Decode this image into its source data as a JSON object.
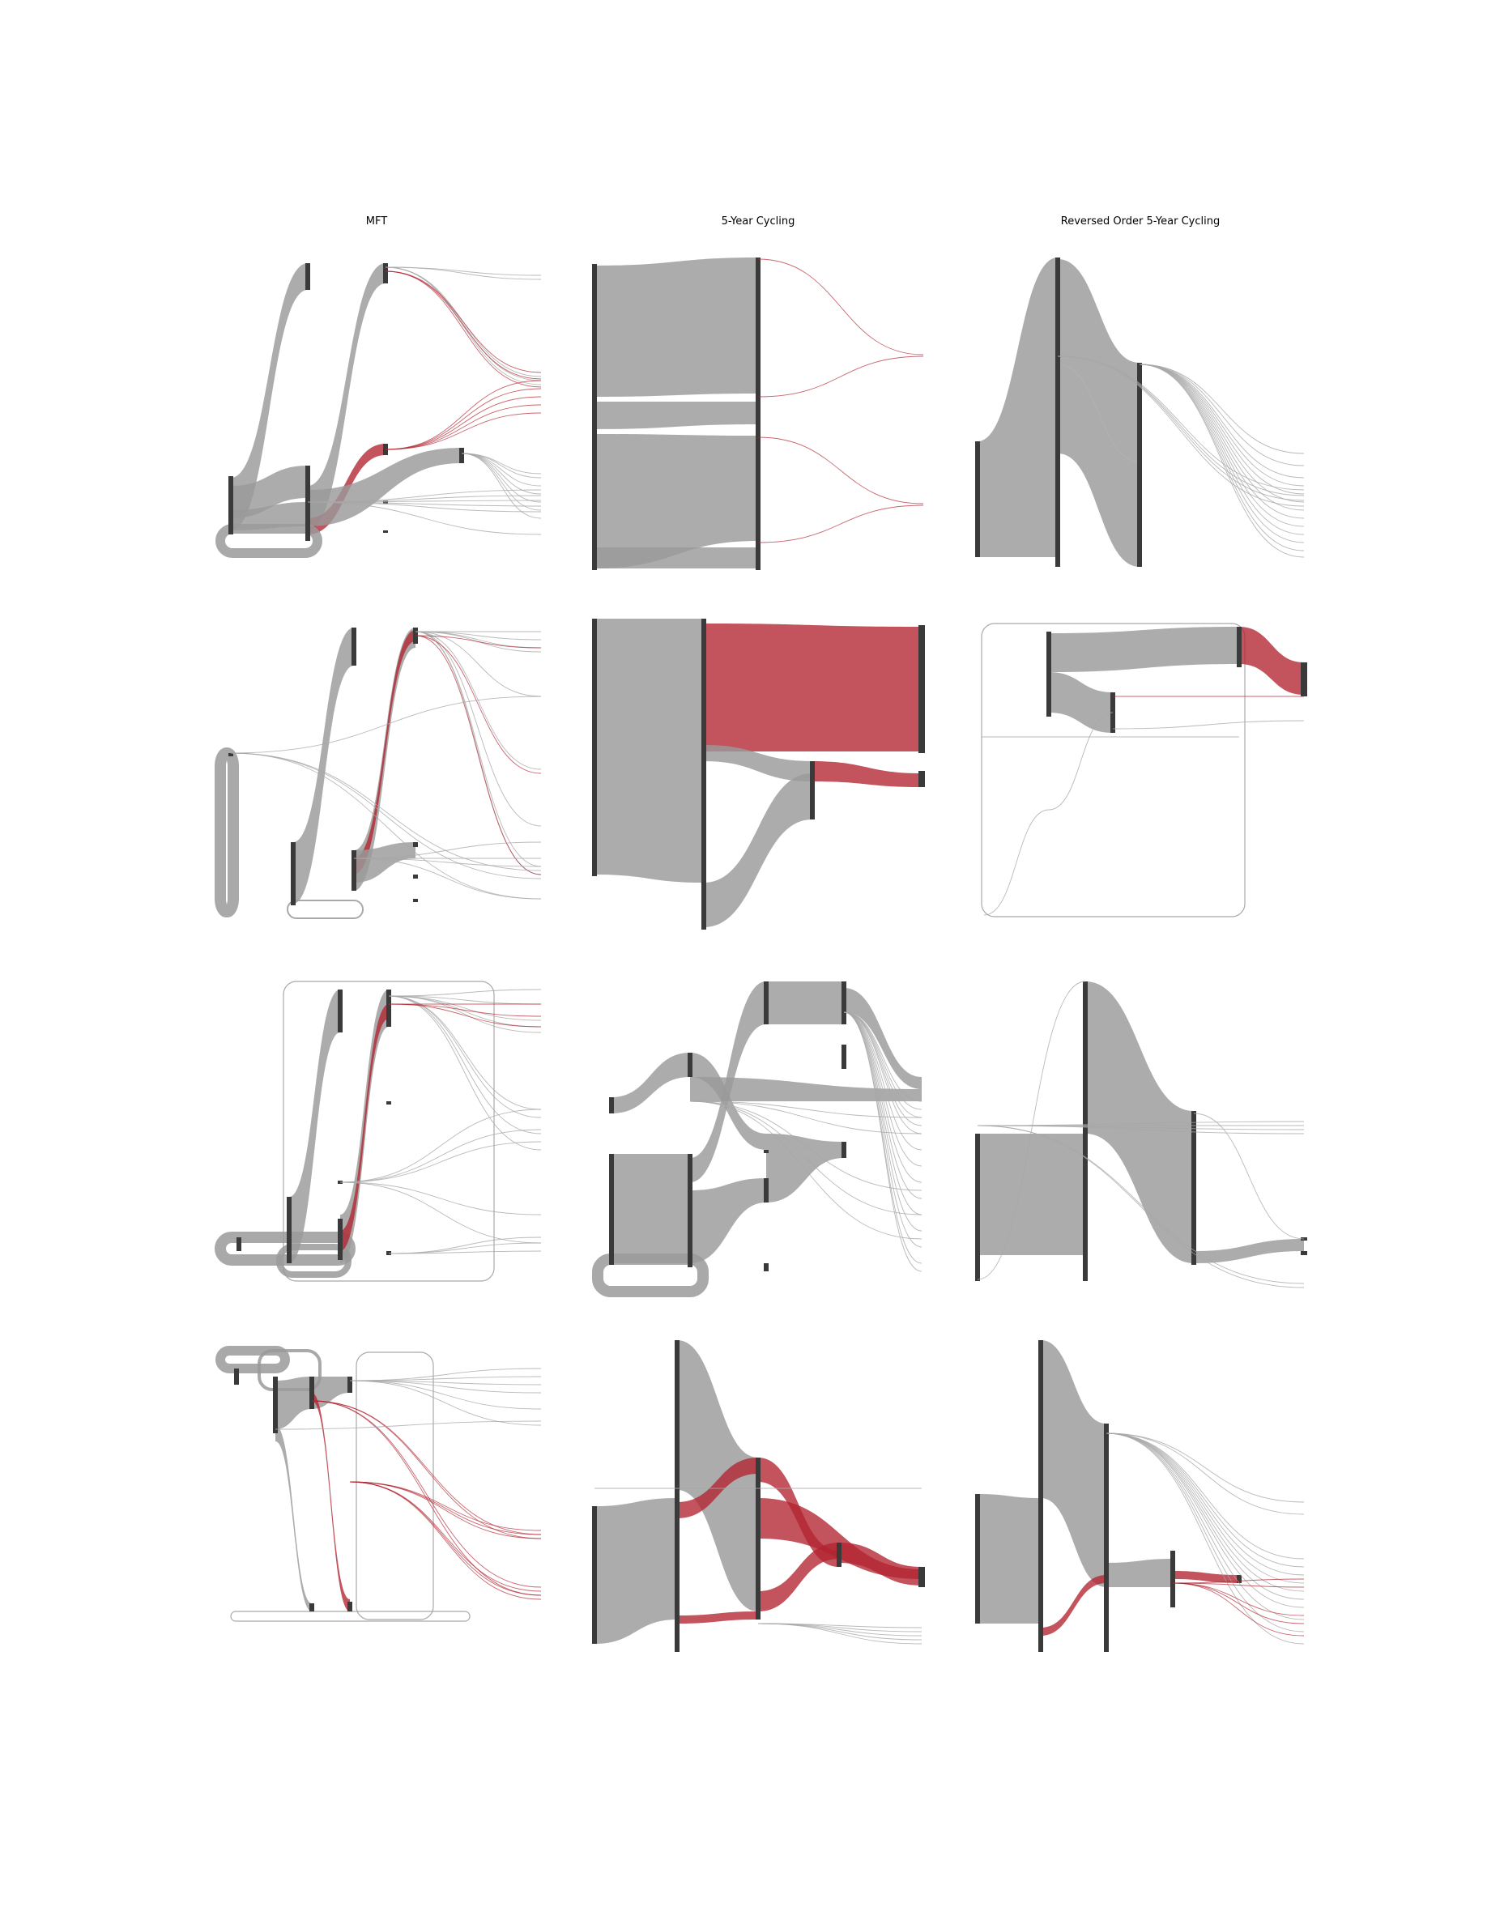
{
  "figure": {
    "columns": [
      {
        "title": "MFT"
      },
      {
        "title": "5-Year Cycling"
      },
      {
        "title": "Reversed Order 5-Year Cycling"
      }
    ],
    "rows": 4,
    "colors": {
      "node": "#3a3a3a",
      "flow": "#9a9a9a",
      "highlight": "#b22430"
    }
  }
}
